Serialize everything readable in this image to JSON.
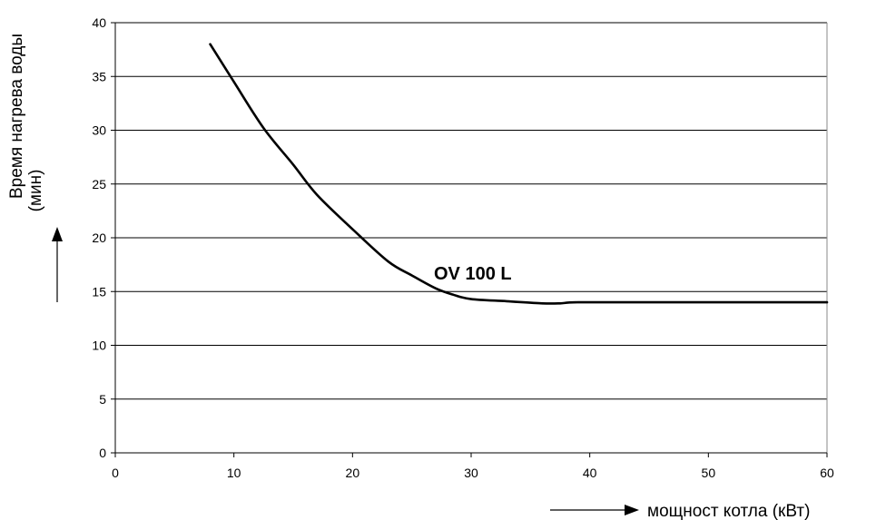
{
  "chart_data": {
    "type": "line",
    "xlabel": "мощност котла (кВт)",
    "ylabel_line1": "Время нагрева воды",
    "ylabel_line2": "(мин)",
    "xlim": [
      0,
      60
    ],
    "ylim": [
      0,
      40
    ],
    "x_ticks": [
      0,
      10,
      20,
      30,
      40,
      50,
      60
    ],
    "y_ticks": [
      0,
      5,
      10,
      15,
      20,
      25,
      30,
      35,
      40
    ],
    "grid": "horizontal",
    "series": [
      {
        "name": "OV 100 L",
        "color": "#000000",
        "x": [
          8,
          10,
          12.5,
          15,
          17,
          20,
          23,
          25,
          27,
          28.5,
          30,
          33,
          36,
          37.5,
          39,
          45,
          50,
          55,
          60
        ],
        "y": [
          38,
          34.5,
          30.2,
          26.8,
          24,
          20.8,
          17.8,
          16.5,
          15.3,
          14.7,
          14.3,
          14.1,
          13.9,
          13.9,
          14.0,
          14.0,
          14.0,
          14.0,
          14.0
        ]
      }
    ]
  }
}
